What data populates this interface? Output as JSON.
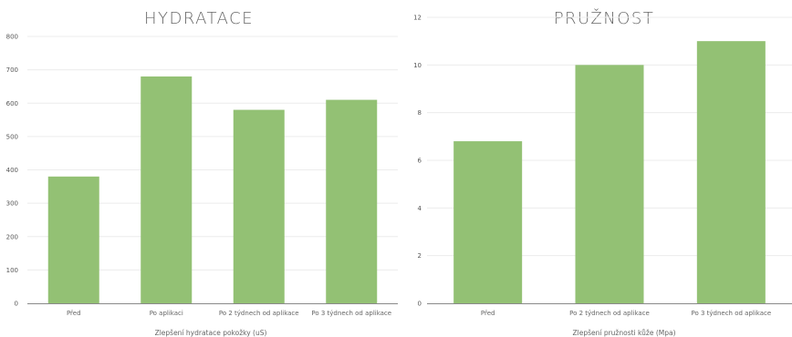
{
  "chart_data": [
    {
      "type": "bar",
      "title": "HYDRATACE",
      "xlabel": "Zlepšení hydratace pokožky  (uS)",
      "ylabel": "",
      "ylim": [
        0,
        800
      ],
      "yticks": [
        0,
        100,
        200,
        300,
        400,
        500,
        600,
        700,
        800
      ],
      "categories": [
        "Před",
        "Po aplikaci",
        "Po 2 týdnech od aplikace",
        "Po 3 týdnech od aplikace"
      ],
      "values": [
        380,
        680,
        580,
        610
      ],
      "grid": true,
      "color": "#93c174"
    },
    {
      "type": "bar",
      "title": "PRUŽNOST",
      "xlabel": "Zlepšení pružnosti kůže (Mpa)",
      "ylabel": "",
      "ylim": [
        0,
        12
      ],
      "yticks": [
        0,
        2,
        4,
        6,
        8,
        10,
        12
      ],
      "categories": [
        "Před",
        "Po 2 týdnech od aplikace",
        "Po 3 týdnech od aplikace"
      ],
      "values": [
        6.8,
        10,
        11
      ],
      "grid": true,
      "color": "#93c174"
    }
  ]
}
